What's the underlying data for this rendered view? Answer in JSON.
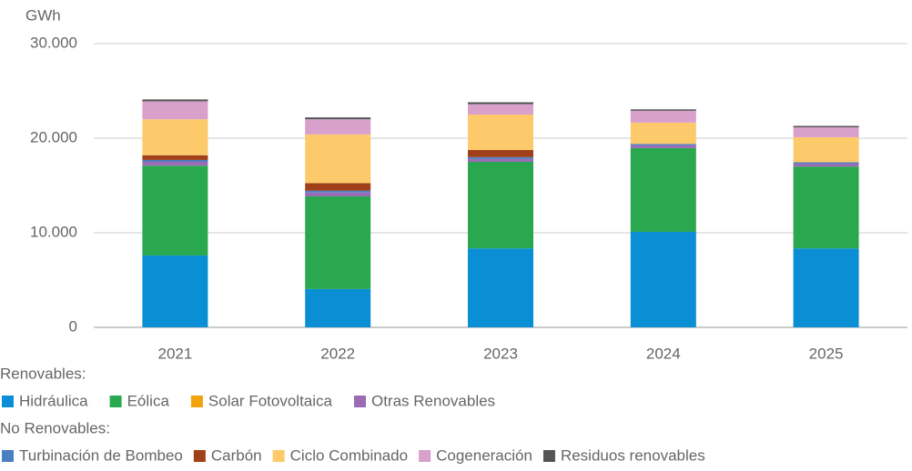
{
  "chart_data": {
    "type": "stacked_bar",
    "y_label": "GWh",
    "categories": [
      "2021",
      "2022",
      "2023",
      "2024",
      "2025"
    ],
    "ylim": [
      0,
      30000
    ],
    "yticks": [
      0,
      {
        "value": 10000,
        "label": "10.000"
      },
      {
        "value": 20000,
        "label": "20.000"
      },
      {
        "value": 30000,
        "label": "30.000"
      }
    ],
    "grid": true,
    "legend_groups": [
      {
        "title": "Renovables:"
      },
      {
        "title": "No Renovables:"
      }
    ],
    "series": [
      {
        "name": "Hidráulica",
        "color": "#0a8fd4",
        "group": 0,
        "values": [
          7600,
          4050,
          8350,
          10100,
          8350
        ]
      },
      {
        "name": "Eólica",
        "color": "#2aa84f",
        "group": 0,
        "values": [
          9500,
          9800,
          9150,
          8850,
          8650
        ]
      },
      {
        "name": "Solar Fotovoltaica",
        "color": "#f0a30a",
        "group": 0,
        "values": [
          0,
          0,
          0,
          0,
          0
        ]
      },
      {
        "name": "Otras Renovables",
        "color": "#9b6bb5",
        "group": 0,
        "values": [
          400,
          400,
          300,
          300,
          300
        ]
      },
      {
        "name": "Turbinación de Bombeo",
        "color": "#4a7fc0",
        "group": 1,
        "values": [
          200,
          200,
          200,
          150,
          150
        ]
      },
      {
        "name": "Carbón",
        "color": "#a0401a",
        "group": 1,
        "values": [
          500,
          800,
          750,
          0,
          0
        ]
      },
      {
        "name": "Ciclo Combinado",
        "color": "#fdca6b",
        "group": 1,
        "values": [
          3800,
          5150,
          3750,
          2250,
          2650
        ]
      },
      {
        "name": "Cogeneración",
        "color": "#d9a0cc",
        "group": 1,
        "values": [
          1900,
          1600,
          1100,
          1250,
          1050
        ]
      },
      {
        "name": "Residuos renovables",
        "color": "#555555",
        "group": 1,
        "values": [
          200,
          200,
          200,
          150,
          150
        ]
      }
    ]
  }
}
